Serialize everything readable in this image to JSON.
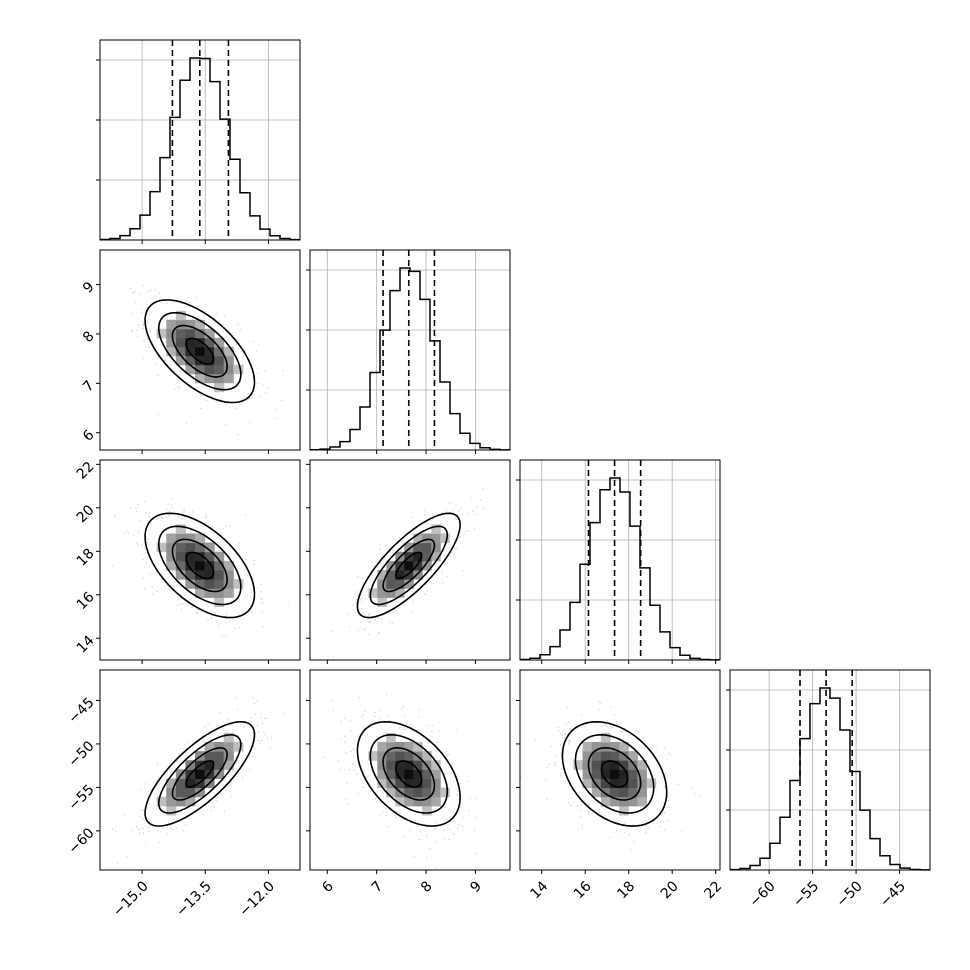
{
  "chart_data": {
    "type": "corner",
    "parameters": [
      {
        "lim": [
          -16.0,
          -11.25
        ],
        "ticks": [
          -15.0,
          -13.5,
          -12.0
        ],
        "tick_labels": [
          "−15.0",
          "−13.5",
          "−12.0"
        ],
        "median": -13.63,
        "q16": -14.28,
        "q84": -12.95,
        "sigma": 0.65
      },
      {
        "lim": [
          5.65,
          9.7
        ],
        "ticks": [
          6,
          7,
          8,
          9
        ],
        "tick_labels": [
          "6",
          "7",
          "8",
          "9"
        ],
        "median": 7.65,
        "q16": 7.13,
        "q84": 8.17,
        "sigma": 0.52
      },
      {
        "lim": [
          13.0,
          22.2
        ],
        "ticks": [
          14,
          16,
          18,
          20,
          22
        ],
        "tick_labels": [
          "14",
          "16",
          "18",
          "20",
          "22"
        ],
        "median": 17.35,
        "q16": 16.15,
        "q84": 18.55,
        "sigma": 1.2
      },
      {
        "lim": [
          -64.5,
          -41.5
        ],
        "ticks": [
          -60,
          -55,
          -50,
          -45
        ],
        "tick_labels": [
          "−60",
          "−55",
          "−50",
          "−45"
        ],
        "median": -53.45,
        "q16": -56.45,
        "q84": -50.45,
        "sigma": 3.0
      }
    ],
    "correlations": [
      [
        1,
        -0.6,
        -0.55,
        0.75
      ],
      [
        -0.6,
        1,
        0.78,
        -0.45
      ],
      [
        -0.55,
        0.78,
        1,
        -0.35
      ],
      [
        0.75,
        -0.45,
        -0.35,
        1
      ]
    ],
    "histogram_bins": 20,
    "grid": true,
    "quantiles": [
      0.16,
      0.5,
      0.84
    ],
    "contour_sigma_levels": [
      0.5,
      1.0,
      1.5,
      2.0
    ]
  }
}
